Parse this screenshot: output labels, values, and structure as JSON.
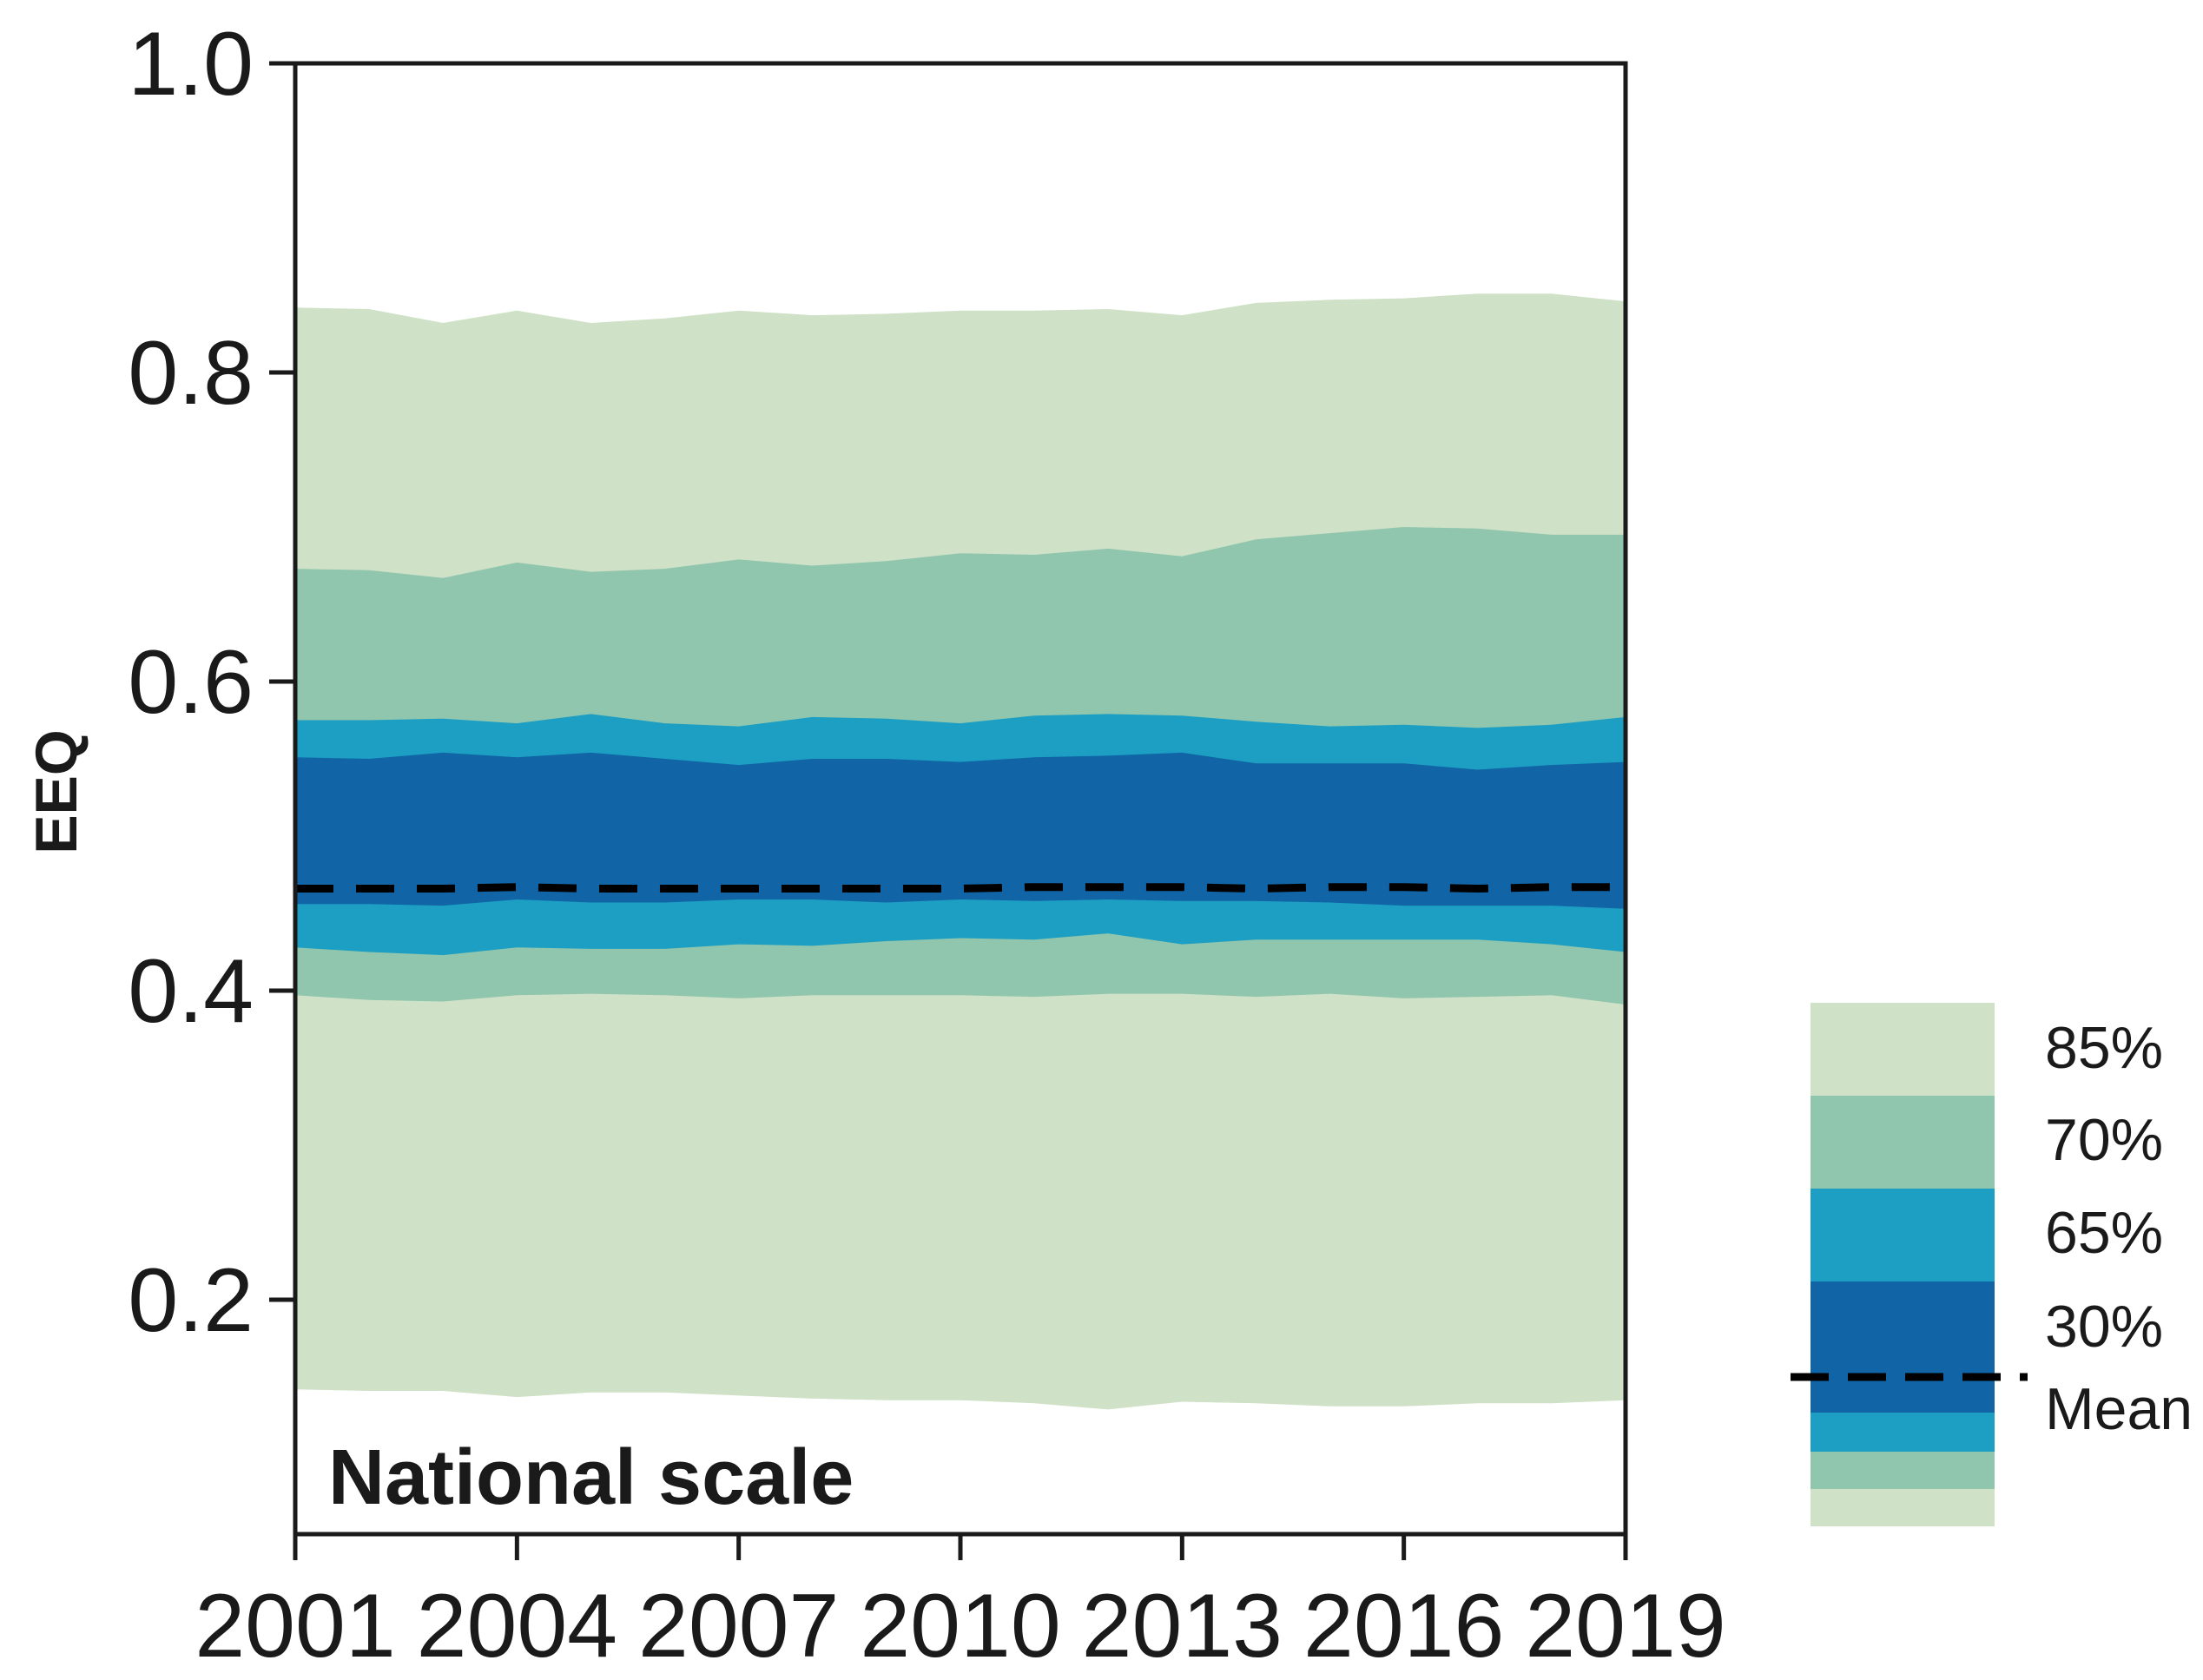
{
  "chart_data": {
    "type": "area",
    "title": "",
    "xlabel": "",
    "ylabel": "EEQ",
    "annotation": "National scale",
    "xlim": [
      2001,
      2019
    ],
    "ylim": [
      0.05,
      1.0
    ],
    "xticks": [
      "2001",
      "2004",
      "2007",
      "2010",
      "2013",
      "2016",
      "2019"
    ],
    "yticks": [
      "0.2",
      "0.4",
      "0.6",
      "0.8",
      "1.0"
    ],
    "x": [
      2001,
      2002,
      2003,
      2004,
      2005,
      2006,
      2007,
      2008,
      2009,
      2010,
      2011,
      2012,
      2013,
      2014,
      2015,
      2016,
      2017,
      2018,
      2019
    ],
    "bands": [
      {
        "name": "85%",
        "color": "#cfe1c6",
        "upper": [
          0.842,
          0.841,
          0.832,
          0.84,
          0.832,
          0.835,
          0.84,
          0.837,
          0.838,
          0.84,
          0.84,
          0.841,
          0.837,
          0.845,
          0.847,
          0.848,
          0.851,
          0.851,
          0.846
        ],
        "lower": [
          0.142,
          0.141,
          0.141,
          0.137,
          0.14,
          0.14,
          0.138,
          0.136,
          0.135,
          0.135,
          0.133,
          0.129,
          0.134,
          0.133,
          0.131,
          0.131,
          0.133,
          0.133,
          0.135
        ]
      },
      {
        "name": "70%",
        "color": "#90c5ae",
        "upper": [
          0.673,
          0.672,
          0.667,
          0.677,
          0.671,
          0.673,
          0.679,
          0.675,
          0.678,
          0.683,
          0.682,
          0.686,
          0.681,
          0.692,
          0.696,
          0.7,
          0.699,
          0.695,
          0.695
        ],
        "lower": [
          0.397,
          0.394,
          0.393,
          0.397,
          0.398,
          0.397,
          0.395,
          0.397,
          0.397,
          0.397,
          0.396,
          0.398,
          0.398,
          0.396,
          0.398,
          0.395,
          0.396,
          0.397,
          0.391
        ]
      },
      {
        "name": "65%",
        "color": "#1c9fc2",
        "upper": [
          0.575,
          0.575,
          0.576,
          0.573,
          0.579,
          0.573,
          0.571,
          0.577,
          0.576,
          0.573,
          0.578,
          0.579,
          0.578,
          0.574,
          0.571,
          0.572,
          0.57,
          0.572,
          0.577
        ],
        "lower": [
          0.428,
          0.425,
          0.423,
          0.428,
          0.427,
          0.427,
          0.43,
          0.429,
          0.432,
          0.434,
          0.433,
          0.437,
          0.43,
          0.433,
          0.433,
          0.433,
          0.433,
          0.43,
          0.425
        ]
      },
      {
        "name": "30%",
        "color": "#1164a5",
        "upper": [
          0.551,
          0.55,
          0.554,
          0.551,
          0.554,
          0.55,
          0.546,
          0.55,
          0.55,
          0.548,
          0.551,
          0.552,
          0.554,
          0.547,
          0.547,
          0.547,
          0.543,
          0.546,
          0.548
        ],
        "lower": [
          0.456,
          0.456,
          0.455,
          0.459,
          0.457,
          0.457,
          0.459,
          0.459,
          0.457,
          0.459,
          0.458,
          0.459,
          0.458,
          0.458,
          0.457,
          0.455,
          0.455,
          0.455,
          0.453
        ]
      }
    ],
    "mean": {
      "name": "Mean",
      "color": "#000000",
      "values": [
        0.466,
        0.466,
        0.466,
        0.467,
        0.466,
        0.466,
        0.466,
        0.466,
        0.466,
        0.466,
        0.467,
        0.467,
        0.467,
        0.466,
        0.467,
        0.467,
        0.466,
        0.467,
        0.467
      ]
    },
    "legend": {
      "placement": "right",
      "entries": [
        "85%",
        "70%",
        "65%",
        "30%",
        "Mean"
      ]
    }
  }
}
